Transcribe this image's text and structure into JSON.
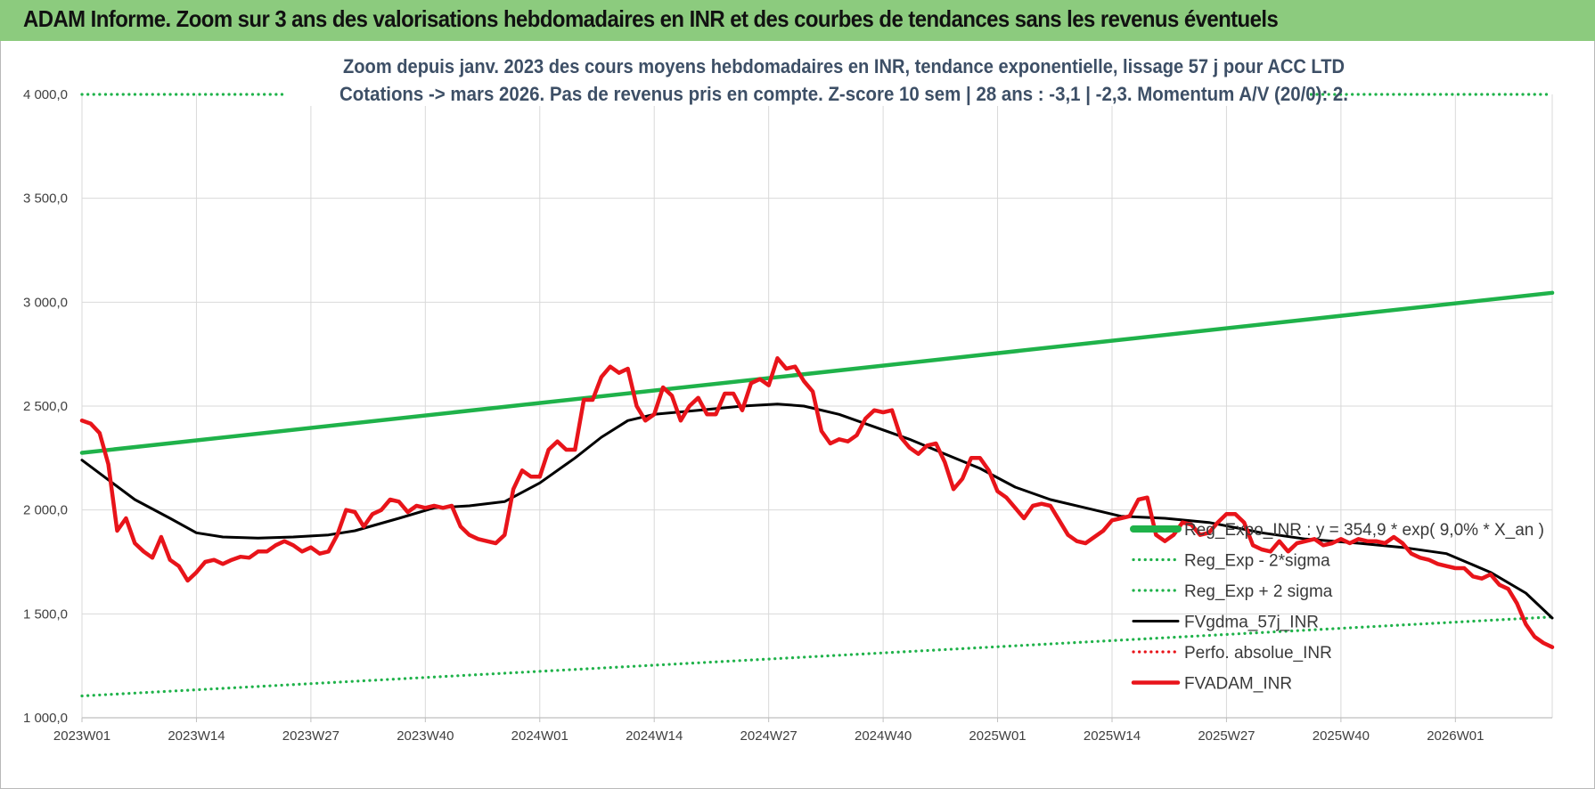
{
  "banner": {
    "title": "ADAM Informe. Zoom sur 3 ans des valorisations hebdomadaires en INR et des courbes de tendances sans les revenus éventuels"
  },
  "chart_data": {
    "type": "line",
    "title_lines": [
      "Zoom depuis janv. 2023 des cours moyens hebdomadaires en INR, tendance exponentielle, lissage 57 j pour ACC LTD",
      "Cotations -> mars 2026. Pas de revenus pris en compte. Z-score 10 sem | 28 ans : -3,1 | -2,3. Momentum A/V (20/0): 2."
    ],
    "xlabel": "",
    "ylabel": "",
    "ylim": [
      1000,
      4000
    ],
    "y_ticks": [
      "1 000,0",
      "1 500,0",
      "2 000,0",
      "2 500,0",
      "3 000,0",
      "3 500,0",
      "4 000,0"
    ],
    "x_ticks": [
      "2023W01",
      "2023W14",
      "2023W27",
      "2023W40",
      "2024W01",
      "2024W14",
      "2024W27",
      "2024W40",
      "2025W01",
      "2025W14",
      "2025W27",
      "2025W40",
      "2026W01"
    ],
    "week_count": 168,
    "grid": true,
    "legend_position": "bottom-right",
    "legend": [
      "Reg_Expo_INR : y = 354,9 * exp( 9,0% *  X_an )",
      "Reg_Exp - 2*sigma",
      "Reg_Exp + 2 sigma",
      "FVgdma_57j_INR",
      "Perfo. absolue_INR",
      "FVADAM_INR"
    ],
    "series": [
      {
        "name": "Reg_Expo_INR : y = 354,9 * exp( 9,0% *  X_an )",
        "color": "#1fb24a",
        "style": "solid-thick",
        "points": [
          [
            0,
            2275
          ],
          [
            167,
            3045
          ]
        ]
      },
      {
        "name": "Reg_Exp - 2*sigma",
        "color": "#1fb24a",
        "style": "dotted",
        "points": [
          [
            0,
            1105
          ],
          [
            167,
            1485
          ]
        ]
      },
      {
        "name": "Reg_Exp + 2 sigma",
        "color": "#1fb24a",
        "style": "dotted",
        "points": [
          [
            0,
            4000
          ],
          [
            167,
            4000
          ]
        ]
      },
      {
        "name": "FVgdma_57j_INR",
        "color": "#000000",
        "style": "solid",
        "points": [
          [
            0,
            2240
          ],
          [
            6,
            2050
          ],
          [
            10,
            1960
          ],
          [
            13,
            1890
          ],
          [
            16,
            1870
          ],
          [
            20,
            1865
          ],
          [
            24,
            1870
          ],
          [
            28,
            1880
          ],
          [
            31,
            1900
          ],
          [
            36,
            1960
          ],
          [
            40,
            2010
          ],
          [
            44,
            2020
          ],
          [
            48,
            2040
          ],
          [
            52,
            2130
          ],
          [
            56,
            2250
          ],
          [
            59,
            2350
          ],
          [
            62,
            2430
          ],
          [
            65,
            2460
          ],
          [
            70,
            2480
          ],
          [
            75,
            2500
          ],
          [
            79,
            2510
          ],
          [
            82,
            2500
          ],
          [
            86,
            2460
          ],
          [
            90,
            2400
          ],
          [
            94,
            2340
          ],
          [
            98,
            2270
          ],
          [
            102,
            2200
          ],
          [
            106,
            2110
          ],
          [
            110,
            2050
          ],
          [
            114,
            2010
          ],
          [
            118,
            1970
          ],
          [
            123,
            1960
          ],
          [
            128,
            1940
          ],
          [
            134,
            1890
          ],
          [
            139,
            1860
          ],
          [
            145,
            1840
          ],
          [
            150,
            1820
          ],
          [
            155,
            1790
          ],
          [
            160,
            1700
          ],
          [
            164,
            1600
          ],
          [
            167,
            1480
          ]
        ]
      },
      {
        "name": "Perfo. absolue_INR",
        "color": "#e8141a",
        "style": "dotted",
        "points": []
      },
      {
        "name": "FVADAM_INR",
        "color": "#e8141a",
        "style": "solid-thick",
        "points": [
          [
            0,
            2430
          ],
          [
            1,
            2415
          ],
          [
            2,
            2370
          ],
          [
            3,
            2220
          ],
          [
            4,
            1900
          ],
          [
            5,
            1960
          ],
          [
            6,
            1840
          ],
          [
            7,
            1800
          ],
          [
            8,
            1770
          ],
          [
            9,
            1870
          ],
          [
            10,
            1760
          ],
          [
            11,
            1730
          ],
          [
            12,
            1660
          ],
          [
            13,
            1700
          ],
          [
            14,
            1750
          ],
          [
            15,
            1760
          ],
          [
            16,
            1740
          ],
          [
            17,
            1760
          ],
          [
            18,
            1775
          ],
          [
            19,
            1770
          ],
          [
            20,
            1800
          ],
          [
            21,
            1800
          ],
          [
            22,
            1830
          ],
          [
            23,
            1850
          ],
          [
            24,
            1830
          ],
          [
            25,
            1800
          ],
          [
            26,
            1820
          ],
          [
            27,
            1790
          ],
          [
            28,
            1800
          ],
          [
            29,
            1880
          ],
          [
            30,
            2000
          ],
          [
            31,
            1990
          ],
          [
            32,
            1920
          ],
          [
            33,
            1980
          ],
          [
            34,
            2000
          ],
          [
            35,
            2050
          ],
          [
            36,
            2040
          ],
          [
            37,
            1990
          ],
          [
            38,
            2020
          ],
          [
            39,
            2010
          ],
          [
            40,
            2020
          ],
          [
            41,
            2010
          ],
          [
            42,
            2020
          ],
          [
            43,
            1920
          ],
          [
            44,
            1880
          ],
          [
            45,
            1860
          ],
          [
            46,
            1850
          ],
          [
            47,
            1840
          ],
          [
            48,
            1880
          ],
          [
            49,
            2100
          ],
          [
            50,
            2190
          ],
          [
            51,
            2160
          ],
          [
            52,
            2160
          ],
          [
            53,
            2290
          ],
          [
            54,
            2330
          ],
          [
            55,
            2290
          ],
          [
            56,
            2290
          ],
          [
            57,
            2530
          ],
          [
            58,
            2530
          ],
          [
            59,
            2640
          ],
          [
            60,
            2690
          ],
          [
            61,
            2660
          ],
          [
            62,
            2680
          ],
          [
            63,
            2500
          ],
          [
            64,
            2430
          ],
          [
            65,
            2460
          ],
          [
            66,
            2590
          ],
          [
            67,
            2550
          ],
          [
            68,
            2430
          ],
          [
            69,
            2500
          ],
          [
            70,
            2540
          ],
          [
            71,
            2460
          ],
          [
            72,
            2460
          ],
          [
            73,
            2560
          ],
          [
            74,
            2560
          ],
          [
            75,
            2480
          ],
          [
            76,
            2610
          ],
          [
            77,
            2630
          ],
          [
            78,
            2600
          ],
          [
            79,
            2730
          ],
          [
            80,
            2680
          ],
          [
            81,
            2690
          ],
          [
            82,
            2620
          ],
          [
            83,
            2570
          ],
          [
            84,
            2380
          ],
          [
            85,
            2320
          ],
          [
            86,
            2340
          ],
          [
            87,
            2330
          ],
          [
            88,
            2360
          ],
          [
            89,
            2440
          ],
          [
            90,
            2480
          ],
          [
            91,
            2470
          ],
          [
            92,
            2480
          ],
          [
            93,
            2350
          ],
          [
            94,
            2300
          ],
          [
            95,
            2270
          ],
          [
            96,
            2310
          ],
          [
            97,
            2320
          ],
          [
            98,
            2230
          ],
          [
            99,
            2100
          ],
          [
            100,
            2150
          ],
          [
            101,
            2250
          ],
          [
            102,
            2250
          ],
          [
            103,
            2190
          ],
          [
            104,
            2090
          ],
          [
            105,
            2060
          ],
          [
            106,
            2010
          ],
          [
            107,
            1960
          ],
          [
            108,
            2020
          ],
          [
            109,
            2030
          ],
          [
            110,
            2020
          ],
          [
            111,
            1950
          ],
          [
            112,
            1880
          ],
          [
            113,
            1850
          ],
          [
            114,
            1840
          ],
          [
            115,
            1870
          ],
          [
            116,
            1900
          ],
          [
            117,
            1950
          ],
          [
            118,
            1960
          ],
          [
            119,
            1970
          ],
          [
            120,
            2050
          ],
          [
            121,
            2060
          ],
          [
            122,
            1880
          ],
          [
            123,
            1850
          ],
          [
            124,
            1880
          ],
          [
            125,
            1940
          ],
          [
            126,
            1930
          ],
          [
            127,
            1880
          ],
          [
            128,
            1890
          ],
          [
            129,
            1940
          ],
          [
            130,
            1980
          ],
          [
            131,
            1980
          ],
          [
            132,
            1940
          ],
          [
            133,
            1830
          ],
          [
            134,
            1810
          ],
          [
            135,
            1800
          ],
          [
            136,
            1850
          ],
          [
            137,
            1800
          ],
          [
            138,
            1840
          ],
          [
            139,
            1850
          ],
          [
            140,
            1860
          ],
          [
            141,
            1830
          ],
          [
            142,
            1840
          ],
          [
            143,
            1860
          ],
          [
            144,
            1840
          ],
          [
            145,
            1860
          ],
          [
            146,
            1850
          ],
          [
            147,
            1850
          ],
          [
            148,
            1840
          ],
          [
            149,
            1870
          ],
          [
            150,
            1840
          ],
          [
            151,
            1790
          ],
          [
            152,
            1770
          ],
          [
            153,
            1760
          ],
          [
            154,
            1740
          ],
          [
            155,
            1730
          ],
          [
            156,
            1720
          ],
          [
            157,
            1720
          ],
          [
            158,
            1680
          ],
          [
            159,
            1670
          ],
          [
            160,
            1690
          ],
          [
            161,
            1640
          ],
          [
            162,
            1620
          ],
          [
            163,
            1550
          ],
          [
            164,
            1450
          ],
          [
            165,
            1390
          ],
          [
            166,
            1360
          ],
          [
            167,
            1340
          ]
        ]
      }
    ]
  }
}
